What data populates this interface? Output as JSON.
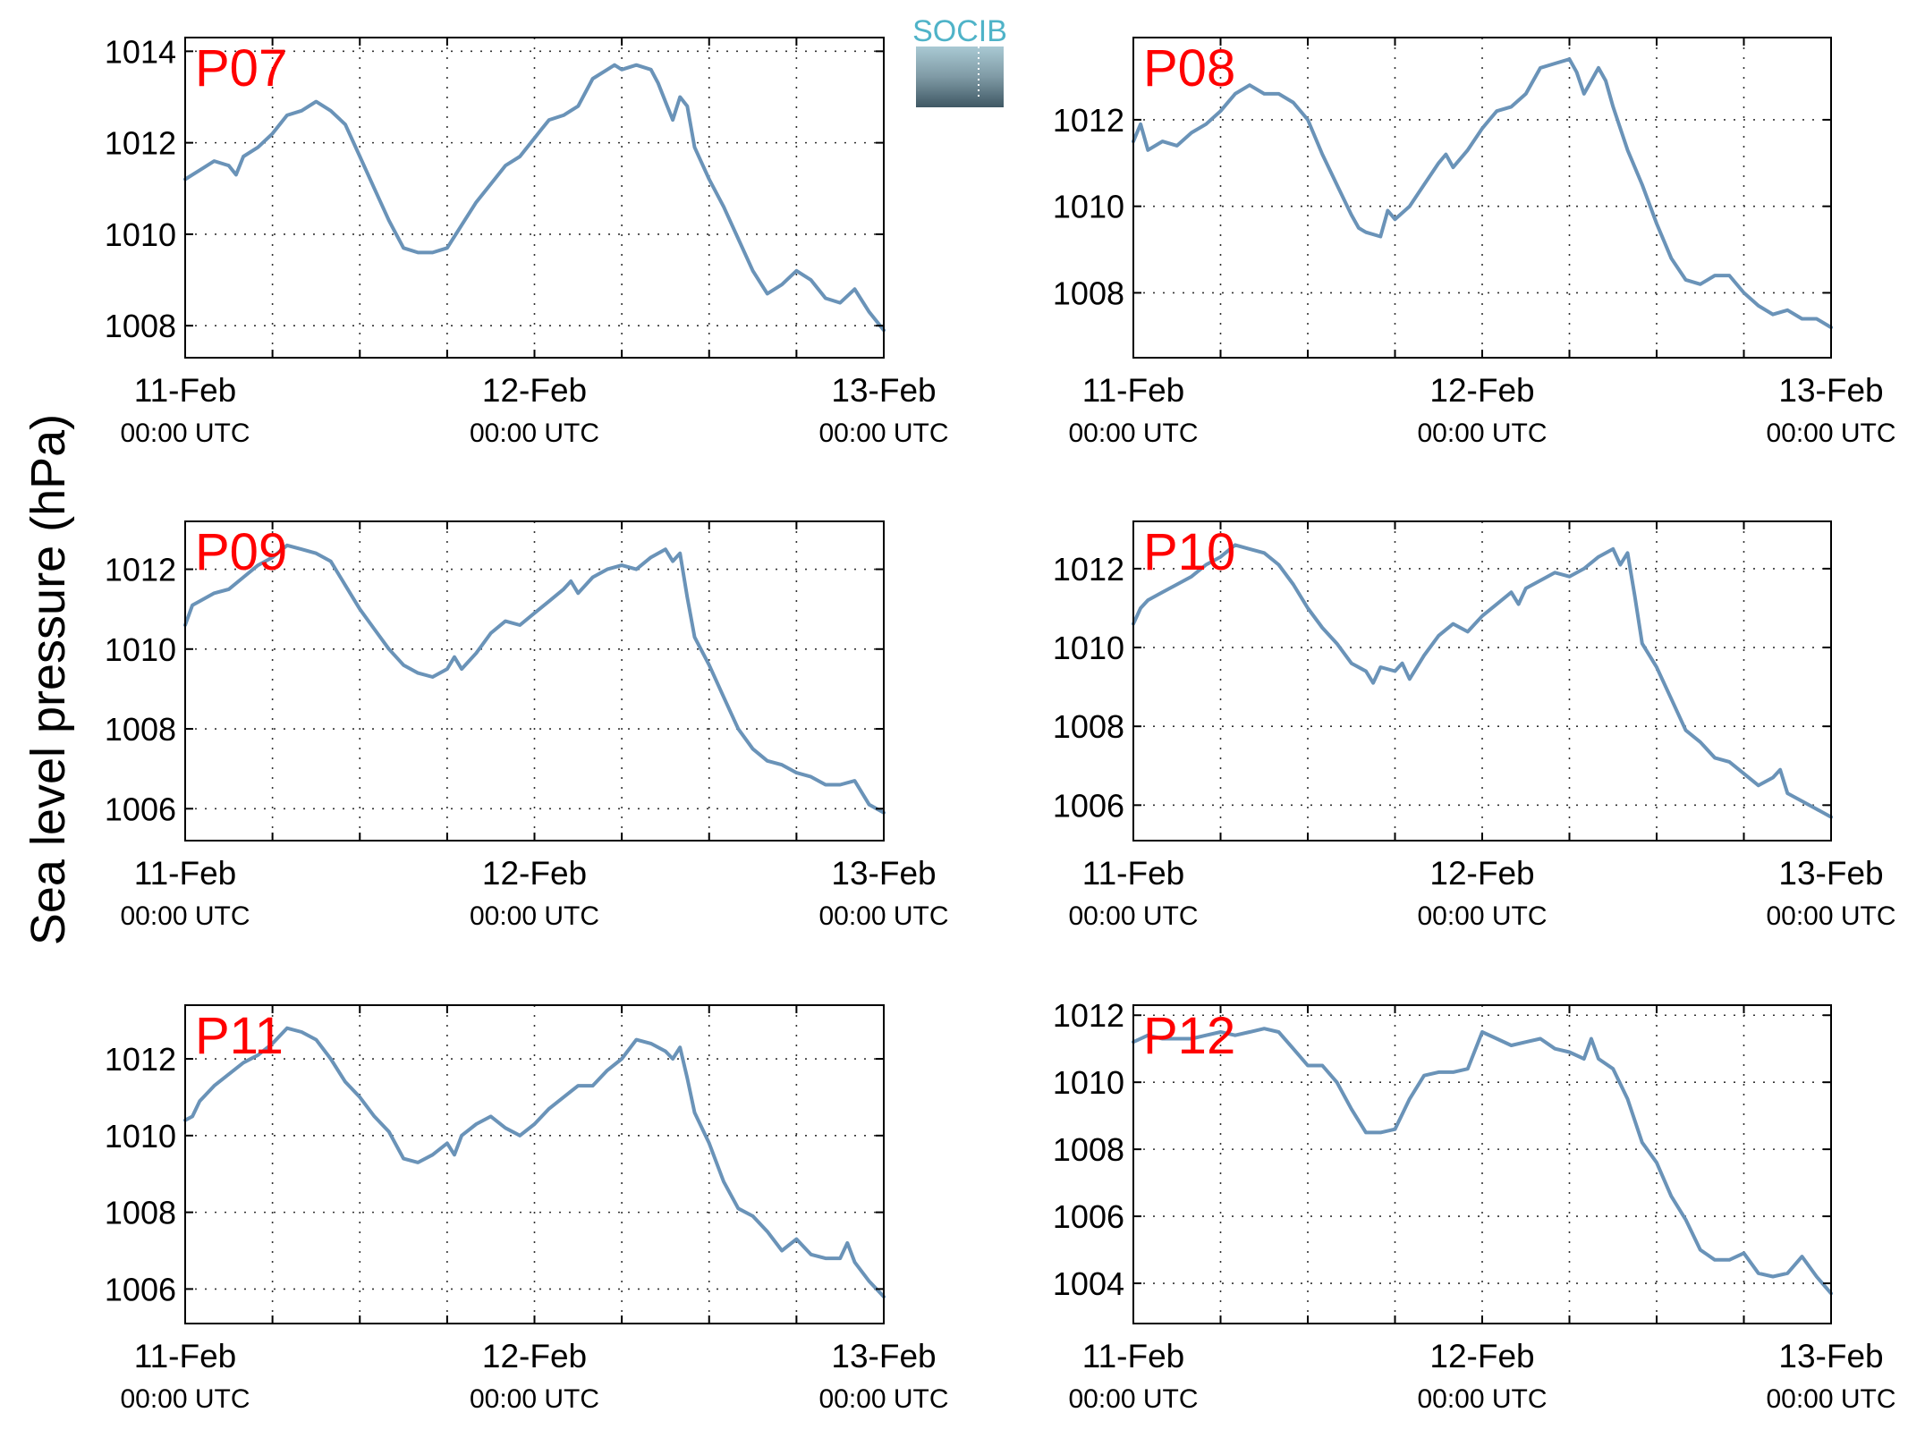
{
  "figure": {
    "ylabel": "Sea level pressure (hPa)",
    "logo_text": "SOCIB",
    "line_color": "#6a93b8",
    "label_color": "#ff0000",
    "x_ticks": [
      {
        "x": 0,
        "date": "11-Feb",
        "time": "00:00 UTC"
      },
      {
        "x": 24,
        "date": "12-Feb",
        "time": "00:00 UTC"
      },
      {
        "x": 48,
        "date": "13-Feb",
        "time": "00:00 UTC"
      }
    ],
    "x_grid_hours": [
      6,
      12,
      18,
      30,
      36,
      42
    ]
  },
  "chart_data": [
    {
      "type": "line",
      "station": "P07",
      "xlim": [
        0,
        48
      ],
      "ylim": [
        1007.3,
        1014.3
      ],
      "yticks": [
        1008,
        1010,
        1012,
        1014
      ],
      "grid": true,
      "x": [
        0,
        1,
        2,
        3,
        3.5,
        4,
        5,
        6,
        7,
        8,
        9,
        10,
        11,
        12,
        13,
        14,
        15,
        16,
        17,
        18,
        19,
        20,
        21,
        22,
        23,
        24,
        24.5,
        25,
        26,
        27,
        28,
        29,
        29.5,
        30,
        31,
        32,
        32.5,
        33,
        33.5,
        34,
        34.5,
        35,
        36,
        37,
        38,
        39,
        40,
        41,
        42,
        43,
        44,
        45,
        46,
        47,
        48
      ],
      "values": [
        1011.2,
        1011.4,
        1011.6,
        1011.5,
        1011.3,
        1011.7,
        1011.9,
        1012.2,
        1012.6,
        1012.7,
        1012.9,
        1012.7,
        1012.4,
        1011.7,
        1011.0,
        1010.3,
        1009.7,
        1009.6,
        1009.6,
        1009.7,
        1010.2,
        1010.7,
        1011.1,
        1011.5,
        1011.7,
        1012.1,
        1012.3,
        1012.5,
        1012.6,
        1012.8,
        1013.4,
        1013.6,
        1013.7,
        1013.6,
        1013.7,
        1013.6,
        1013.3,
        1012.9,
        1012.5,
        1013.0,
        1012.8,
        1011.9,
        1011.2,
        1010.6,
        1009.9,
        1009.2,
        1008.7,
        1008.9,
        1009.2,
        1009.0,
        1008.6,
        1008.5,
        1008.8,
        1008.3,
        1007.9
      ]
    },
    {
      "type": "line",
      "station": "P08",
      "xlim": [
        0,
        48
      ],
      "ylim": [
        1006.5,
        1013.9
      ],
      "yticks": [
        1008,
        1010,
        1012
      ],
      "grid": true,
      "x": [
        0,
        0.5,
        1,
        2,
        3,
        4,
        5,
        6,
        7,
        8,
        9,
        10,
        11,
        12,
        13,
        14,
        15,
        15.5,
        16,
        17,
        17.5,
        18,
        19,
        20,
        21,
        21.5,
        22,
        23,
        24,
        24.5,
        25,
        26,
        27,
        28,
        29,
        30,
        30.5,
        31,
        32,
        32.5,
        33,
        34,
        35,
        36,
        37,
        38,
        39,
        40,
        41,
        42,
        43,
        44,
        45,
        46,
        47,
        48
      ],
      "values": [
        1011.5,
        1011.9,
        1011.3,
        1011.5,
        1011.4,
        1011.7,
        1011.9,
        1012.2,
        1012.6,
        1012.8,
        1012.6,
        1012.6,
        1012.4,
        1012.0,
        1011.2,
        1010.5,
        1009.8,
        1009.5,
        1009.4,
        1009.3,
        1009.9,
        1009.7,
        1010.0,
        1010.5,
        1011.0,
        1011.2,
        1010.9,
        1011.3,
        1011.8,
        1012.0,
        1012.2,
        1012.3,
        1012.6,
        1013.2,
        1013.3,
        1013.4,
        1013.1,
        1012.6,
        1013.2,
        1012.9,
        1012.3,
        1011.3,
        1010.5,
        1009.6,
        1008.8,
        1008.3,
        1008.2,
        1008.4,
        1008.4,
        1008.0,
        1007.7,
        1007.5,
        1007.6,
        1007.4,
        1007.4,
        1007.2
      ]
    },
    {
      "type": "line",
      "station": "P09",
      "xlim": [
        0,
        48
      ],
      "ylim": [
        1005.2,
        1013.2
      ],
      "yticks": [
        1006,
        1008,
        1010,
        1012
      ],
      "grid": true,
      "x": [
        0,
        0.5,
        1,
        2,
        3,
        4,
        5,
        6,
        7,
        8,
        9,
        10,
        11,
        12,
        13,
        14,
        15,
        16,
        17,
        18,
        18.5,
        19,
        20,
        21,
        22,
        23,
        24,
        25,
        26,
        26.5,
        27,
        28,
        29,
        30,
        31,
        32,
        33,
        33.5,
        34,
        34.5,
        35,
        36,
        37,
        38,
        39,
        40,
        41,
        42,
        43,
        44,
        45,
        46,
        47,
        48
      ],
      "values": [
        1010.6,
        1011.1,
        1011.2,
        1011.4,
        1011.5,
        1011.8,
        1012.1,
        1012.3,
        1012.6,
        1012.5,
        1012.4,
        1012.2,
        1011.6,
        1011.0,
        1010.5,
        1010.0,
        1009.6,
        1009.4,
        1009.3,
        1009.5,
        1009.8,
        1009.5,
        1009.9,
        1010.4,
        1010.7,
        1010.6,
        1010.9,
        1011.2,
        1011.5,
        1011.7,
        1011.4,
        1011.8,
        1012.0,
        1012.1,
        1012.0,
        1012.3,
        1012.5,
        1012.2,
        1012.4,
        1011.3,
        1010.3,
        1009.6,
        1008.8,
        1008.0,
        1007.5,
        1007.2,
        1007.1,
        1006.9,
        1006.8,
        1006.6,
        1006.6,
        1006.7,
        1006.1,
        1005.9
      ]
    },
    {
      "type": "line",
      "station": "P10",
      "xlim": [
        0,
        48
      ],
      "ylim": [
        1005.1,
        1013.2
      ],
      "yticks": [
        1006,
        1008,
        1010,
        1012
      ],
      "grid": true,
      "x": [
        0,
        0.5,
        1,
        2,
        3,
        4,
        5,
        6,
        7,
        8,
        9,
        10,
        11,
        12,
        13,
        14,
        15,
        16,
        16.5,
        17,
        18,
        18.5,
        19,
        20,
        21,
        22,
        23,
        24,
        25,
        26,
        26.5,
        27,
        28,
        29,
        30,
        31,
        32,
        33,
        33.5,
        34,
        34.5,
        35,
        36,
        37,
        38,
        39,
        40,
        41,
        42,
        43,
        44,
        44.5,
        45,
        46,
        47,
        48
      ],
      "values": [
        1010.6,
        1011.0,
        1011.2,
        1011.4,
        1011.6,
        1011.8,
        1012.1,
        1012.3,
        1012.6,
        1012.5,
        1012.4,
        1012.1,
        1011.6,
        1011.0,
        1010.5,
        1010.1,
        1009.6,
        1009.4,
        1009.1,
        1009.5,
        1009.4,
        1009.6,
        1009.2,
        1009.8,
        1010.3,
        1010.6,
        1010.4,
        1010.8,
        1011.1,
        1011.4,
        1011.1,
        1011.5,
        1011.7,
        1011.9,
        1011.8,
        1012.0,
        1012.3,
        1012.5,
        1012.1,
        1012.4,
        1011.3,
        1010.1,
        1009.5,
        1008.7,
        1007.9,
        1007.6,
        1007.2,
        1007.1,
        1006.8,
        1006.5,
        1006.7,
        1006.9,
        1006.3,
        1006.1,
        1005.9,
        1005.7
      ]
    },
    {
      "type": "line",
      "station": "P11",
      "xlim": [
        0,
        48
      ],
      "ylim": [
        1005.1,
        1013.4
      ],
      "yticks": [
        1006,
        1008,
        1010,
        1012
      ],
      "grid": true,
      "x": [
        0,
        0.5,
        1,
        2,
        3,
        4,
        5,
        6,
        7,
        8,
        9,
        10,
        11,
        12,
        13,
        14,
        15,
        16,
        17,
        18,
        18.5,
        19,
        20,
        21,
        22,
        23,
        24,
        25,
        26,
        27,
        28,
        29,
        30,
        31,
        32,
        33,
        33.5,
        34,
        34.5,
        35,
        36,
        37,
        38,
        39,
        40,
        41,
        42,
        43,
        44,
        45,
        45.5,
        46,
        47,
        48
      ],
      "values": [
        1010.4,
        1010.5,
        1010.9,
        1011.3,
        1011.6,
        1011.9,
        1012.1,
        1012.4,
        1012.8,
        1012.7,
        1012.5,
        1012.0,
        1011.4,
        1011.0,
        1010.5,
        1010.1,
        1009.4,
        1009.3,
        1009.5,
        1009.8,
        1009.5,
        1010.0,
        1010.3,
        1010.5,
        1010.2,
        1010.0,
        1010.3,
        1010.7,
        1011.0,
        1011.3,
        1011.3,
        1011.7,
        1012.0,
        1012.5,
        1012.4,
        1012.2,
        1012.0,
        1012.3,
        1011.5,
        1010.6,
        1009.8,
        1008.8,
        1008.1,
        1007.9,
        1007.5,
        1007.0,
        1007.3,
        1006.9,
        1006.8,
        1006.8,
        1007.2,
        1006.7,
        1006.2,
        1005.8
      ]
    },
    {
      "type": "line",
      "station": "P12",
      "xlim": [
        0,
        48
      ],
      "ylim": [
        1002.8,
        1012.3
      ],
      "yticks": [
        1004,
        1006,
        1008,
        1010,
        1012
      ],
      "grid": true,
      "x": [
        0,
        1,
        2,
        3,
        4,
        5,
        6,
        7,
        8,
        9,
        10,
        11,
        12,
        13,
        14,
        15,
        16,
        17,
        18,
        19,
        20,
        21,
        22,
        23,
        24,
        25,
        26,
        27,
        28,
        29,
        30,
        31,
        31.5,
        32,
        33,
        34,
        35,
        36,
        37,
        38,
        39,
        40,
        41,
        42,
        43,
        44,
        45,
        46,
        47,
        48
      ],
      "values": [
        1011.2,
        1011.4,
        1011.3,
        1011.3,
        1011.3,
        1011.4,
        1011.5,
        1011.4,
        1011.5,
        1011.6,
        1011.5,
        1011.0,
        1010.5,
        1010.5,
        1010.0,
        1009.2,
        1008.5,
        1008.5,
        1008.6,
        1009.5,
        1010.2,
        1010.3,
        1010.3,
        1010.4,
        1011.5,
        1011.3,
        1011.1,
        1011.2,
        1011.3,
        1011.0,
        1010.9,
        1010.7,
        1011.3,
        1010.7,
        1010.4,
        1009.5,
        1008.2,
        1007.6,
        1006.6,
        1005.9,
        1005.0,
        1004.7,
        1004.7,
        1004.9,
        1004.3,
        1004.2,
        1004.3,
        1004.8,
        1004.2,
        1003.7
      ]
    }
  ]
}
